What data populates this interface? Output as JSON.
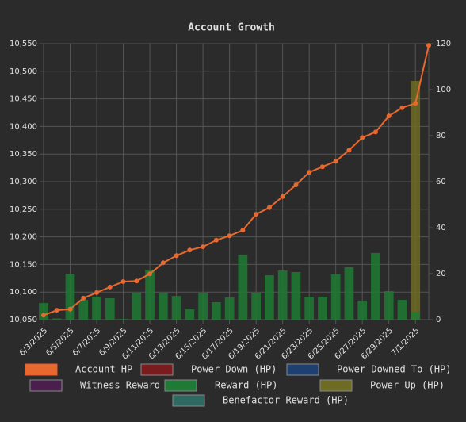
{
  "chart_data": {
    "type": "bar-line",
    "title": "Account Growth",
    "categories": [
      "6/3/2025",
      null,
      "6/5/2025",
      null,
      "6/7/2025",
      null,
      "6/9/2025",
      null,
      "6/11/2025",
      null,
      "6/13/2025",
      null,
      "6/15/2025",
      null,
      "6/17/2025",
      null,
      "6/19/2025",
      null,
      "6/21/2025",
      null,
      "6/23/2025",
      null,
      "6/25/2025",
      null,
      "6/27/2025",
      null,
      "6/29/2025",
      null,
      "7/1/2025",
      null
    ],
    "series": [
      {
        "name": "Account HP",
        "type": "line",
        "color": "#e8692f",
        "values": [
          10058,
          10067,
          10069,
          10089,
          10099,
          10109,
          10119,
          10120,
          10133,
          10153,
          10166,
          10176,
          10182,
          10194,
          10202,
          10212,
          10241,
          10253,
          10273,
          10294,
          10317,
          10327,
          10337,
          10357,
          10380,
          10390,
          10419,
          10434,
          10442,
          10547
        ]
      },
      {
        "name": "Power Down (HP)",
        "type": "bar",
        "axis": "y2",
        "color": "#7a1c1f",
        "values": [
          null,
          null,
          null,
          null,
          null,
          null,
          null,
          null,
          null,
          null,
          null,
          null,
          null,
          null,
          null,
          null,
          null,
          null,
          null,
          null,
          null,
          null,
          null,
          null,
          null,
          null,
          null,
          null,
          null,
          null
        ]
      },
      {
        "name": "Power Downed To (HP)",
        "type": "bar",
        "axis": "y2",
        "color": "#1f3f70",
        "values": [
          null,
          null,
          null,
          null,
          null,
          null,
          null,
          null,
          null,
          null,
          null,
          null,
          null,
          null,
          null,
          null,
          null,
          null,
          null,
          null,
          null,
          null,
          null,
          null,
          null,
          null,
          null,
          null,
          null,
          null
        ]
      },
      {
        "name": "Witness Reward (HP)",
        "type": "bar",
        "axis": "y2",
        "color": "#4a1f4e",
        "values": [
          null,
          null,
          null,
          null,
          null,
          null,
          null,
          null,
          null,
          null,
          null,
          null,
          null,
          null,
          null,
          null,
          null,
          null,
          null,
          null,
          null,
          null,
          null,
          null,
          null,
          null,
          null,
          null,
          null,
          null
        ]
      },
      {
        "name": "Reward (HP)",
        "type": "bar",
        "axis": "y2",
        "color": "#1e7a34",
        "values": [
          7.2,
          0.5,
          20,
          8.6,
          10,
          9.3,
          0.3,
          11.7,
          21.7,
          11.4,
          10.3,
          4.5,
          11.7,
          7.6,
          9.7,
          28.3,
          11.7,
          19.3,
          21.4,
          20.7,
          10,
          10,
          19.7,
          22.8,
          8.3,
          29,
          12.4,
          8.6,
          3.4,
          null
        ]
      },
      {
        "name": "Power Up (HP)",
        "type": "bar",
        "axis": "y2",
        "color": "#6e6b22",
        "values": [
          null,
          null,
          null,
          null,
          null,
          null,
          null,
          null,
          null,
          null,
          null,
          null,
          null,
          null,
          null,
          null,
          null,
          null,
          null,
          null,
          null,
          null,
          null,
          null,
          null,
          null,
          null,
          null,
          103.8,
          null
        ]
      },
      {
        "name": "Benefactor Reward (HP)",
        "type": "bar",
        "axis": "y2",
        "color": "#2f6a62",
        "values": [
          null,
          null,
          null,
          null,
          null,
          null,
          null,
          null,
          null,
          null,
          null,
          null,
          null,
          null,
          null,
          null,
          null,
          null,
          null,
          null,
          null,
          null,
          null,
          null,
          null,
          null,
          null,
          null,
          null,
          null
        ]
      }
    ],
    "ylim": [
      10050,
      10550
    ],
    "yticks": [
      {
        "value": 10050,
        "label": "10,050"
      },
      {
        "value": 10100,
        "label": "10,100"
      },
      {
        "value": 10150,
        "label": "10,150"
      },
      {
        "value": 10200,
        "label": "10,200"
      },
      {
        "value": 10250,
        "label": "10,250"
      },
      {
        "value": 10300,
        "label": "10,300"
      },
      {
        "value": 10350,
        "label": "10,350"
      },
      {
        "value": 10400,
        "label": "10,400"
      },
      {
        "value": 10450,
        "label": "10,450"
      },
      {
        "value": 10500,
        "label": "10,500"
      },
      {
        "value": 10550,
        "label": "10,550"
      }
    ],
    "y2lim": [
      0,
      120
    ],
    "y2ticks": [
      0,
      20,
      40,
      60,
      80,
      100,
      120
    ],
    "grid": true
  }
}
